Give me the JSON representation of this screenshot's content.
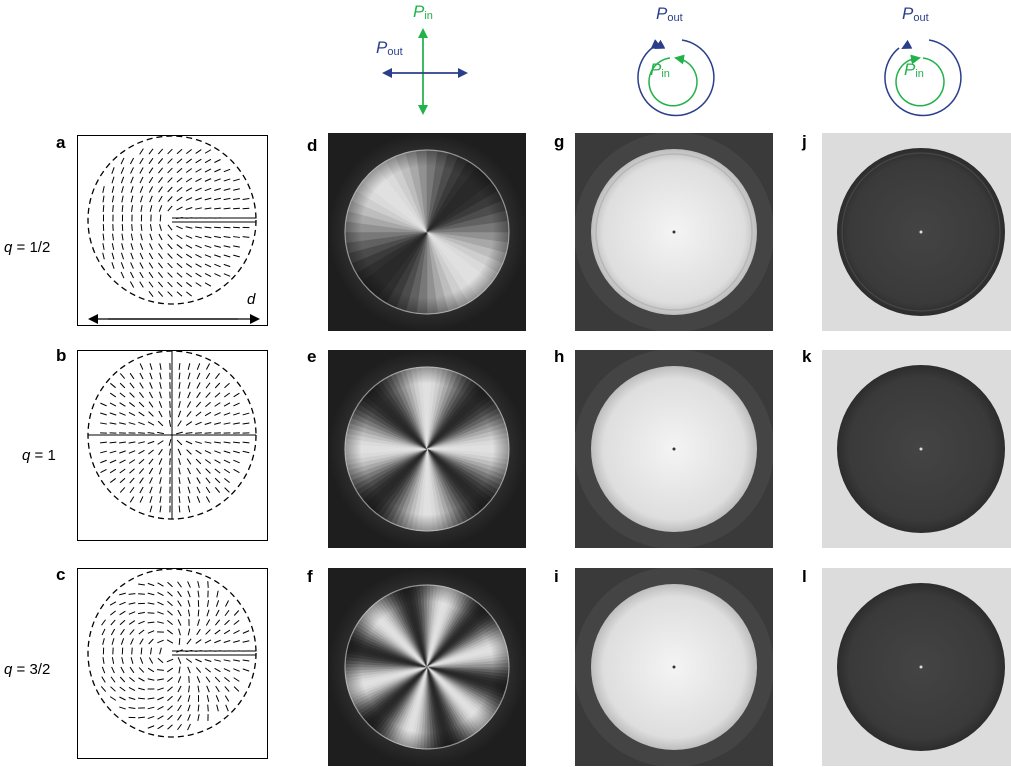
{
  "panel_letters": {
    "a": "a",
    "b": "b",
    "c": "c",
    "d": "d",
    "e": "e",
    "f": "f",
    "g": "g",
    "h": "h",
    "i": "i",
    "j": "j",
    "k": "k",
    "l": "l"
  },
  "q_labels": {
    "q_var": "q",
    "row1": " = 1/2",
    "row2": " = 1",
    "row3": " = 3/2"
  },
  "diameter_label": "d",
  "polarizers": {
    "p_letter": "P",
    "in_sub": "in",
    "out_sub": "out"
  },
  "colors": {
    "out_blue": "#2b3e8c",
    "in_green": "#22b24a"
  },
  "icons": {
    "linear": "crossed-linear-polarizers-icon",
    "circular_parallel": "circular-polarizers-parallel-icon",
    "circular_crossed": "circular-polarizers-crossed-icon"
  }
}
